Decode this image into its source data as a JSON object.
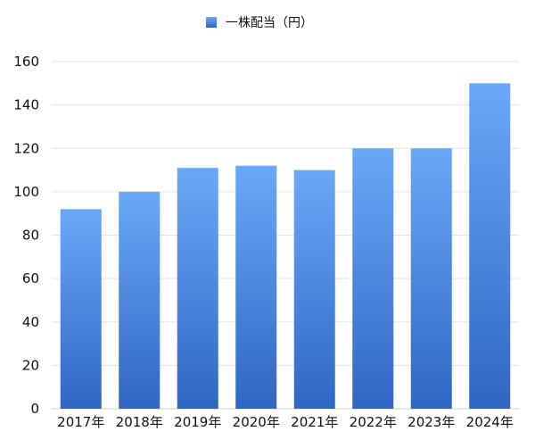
{
  "chart_data": {
    "type": "bar",
    "categories": [
      "2017年",
      "2018年",
      "2019年",
      "2020年",
      "2021年",
      "2022年",
      "2023年",
      "2024年"
    ],
    "series": [
      {
        "name": "一株配当（円）",
        "values": [
          92,
          100,
          111,
          112,
          110,
          120,
          120,
          150
        ]
      }
    ],
    "y_ticks": [
      "0",
      "20",
      "40",
      "60",
      "80",
      "100",
      "120",
      "140",
      "160"
    ],
    "ylim": [
      0,
      160
    ],
    "grid": true,
    "legend_position": "top-center",
    "bar_color_top": "#6aa8f7",
    "bar_color_bottom": "#2f66c4"
  }
}
